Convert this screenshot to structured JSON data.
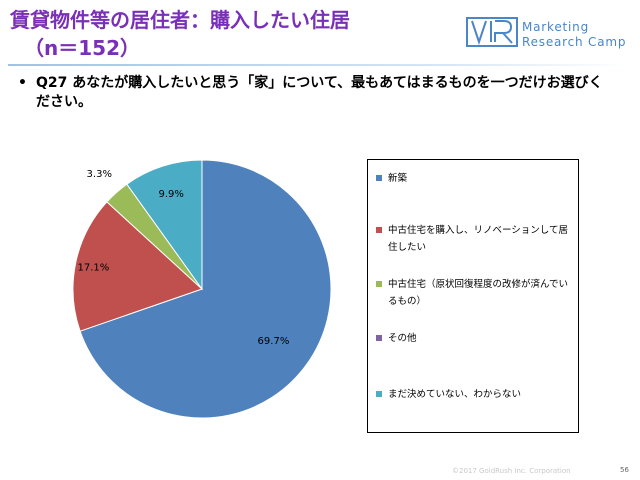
{
  "header": {
    "title_line1": "賃貸物件等の居住者：購入したい住居",
    "title_line2": "（n＝152）",
    "title_color": "#7a2fb8"
  },
  "logo": {
    "line1": "Marketing",
    "line2": "Research Camp",
    "color": "#4a86c8"
  },
  "question": {
    "bullet": "•",
    "text": "Q27 あなたが購入したいと思う「家」について、最もあてはまるものを一つだけお選びください。"
  },
  "chart_data": {
    "type": "pie",
    "start": "top, clockwise",
    "series": [
      {
        "category": "新築",
        "value": 69.7,
        "label": "69.7%",
        "color": "#4f81bd"
      },
      {
        "category": "中古住宅を購入し、リノベーションして居住したい",
        "value": 17.1,
        "label": "17.1%",
        "color": "#c0504d"
      },
      {
        "category": "中古住宅（原状回復程度の改修が済んでいるもの）",
        "value": 3.3,
        "label": "3.3%",
        "color": "#9bbb59"
      },
      {
        "category": "その他",
        "value": 0.0,
        "label": "",
        "color": "#8064a2"
      },
      {
        "category": "まだ決めていない、わからない",
        "value": 9.9,
        "label": "9.9%",
        "color": "#4bacc6"
      }
    ],
    "legend_position": "right"
  },
  "footer": {
    "copyright": "©2017 GoldRush Inc. Corporation",
    "page": "56"
  }
}
